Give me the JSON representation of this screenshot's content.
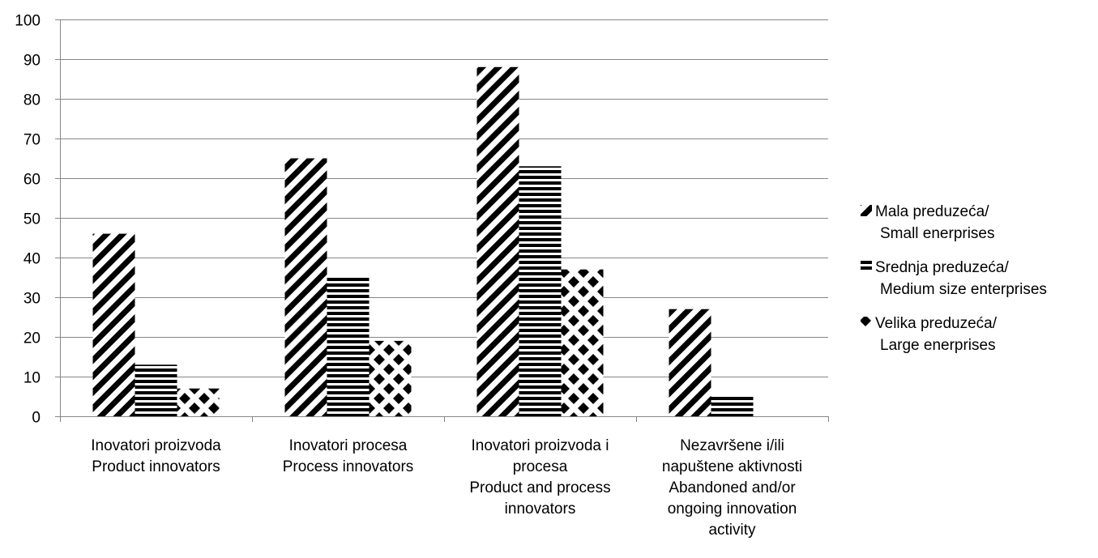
{
  "chart_data": {
    "type": "bar",
    "title": "",
    "xlabel": "",
    "ylabel": "",
    "ylim": [
      0,
      100
    ],
    "yticks": [
      0,
      10,
      20,
      30,
      40,
      50,
      60,
      70,
      80,
      90,
      100
    ],
    "grid": true,
    "legend_position": "right",
    "categories": [
      [
        "Inovatori proizvoda",
        "Product innovators"
      ],
      [
        "Inovatori procesa",
        "Process innovators"
      ],
      [
        "Inovatori proizvoda i",
        "procesa",
        "Product and process",
        "innovators"
      ],
      [
        "Nezavršene i/ili",
        "napuštene aktivnosti",
        "Abandoned and/or",
        "ongoing innovation",
        "activity"
      ]
    ],
    "series": [
      {
        "name": [
          "Mala preduzeća/",
          "Small enerprises"
        ],
        "pattern": "diagonal",
        "values": [
          46,
          65,
          88,
          27
        ]
      },
      {
        "name": [
          "Srednja preduzeća/",
          "Medium size enterprises"
        ],
        "pattern": "horizontal",
        "values": [
          13,
          35,
          63,
          5
        ]
      },
      {
        "name": [
          "Velika preduzeća/",
          "Large enerprises"
        ],
        "pattern": "diamond",
        "values": [
          7,
          19,
          37,
          0
        ]
      }
    ],
    "colors": {
      "bar_fill": "#000000",
      "background": "#ffffff",
      "grid": "#868686"
    }
  }
}
